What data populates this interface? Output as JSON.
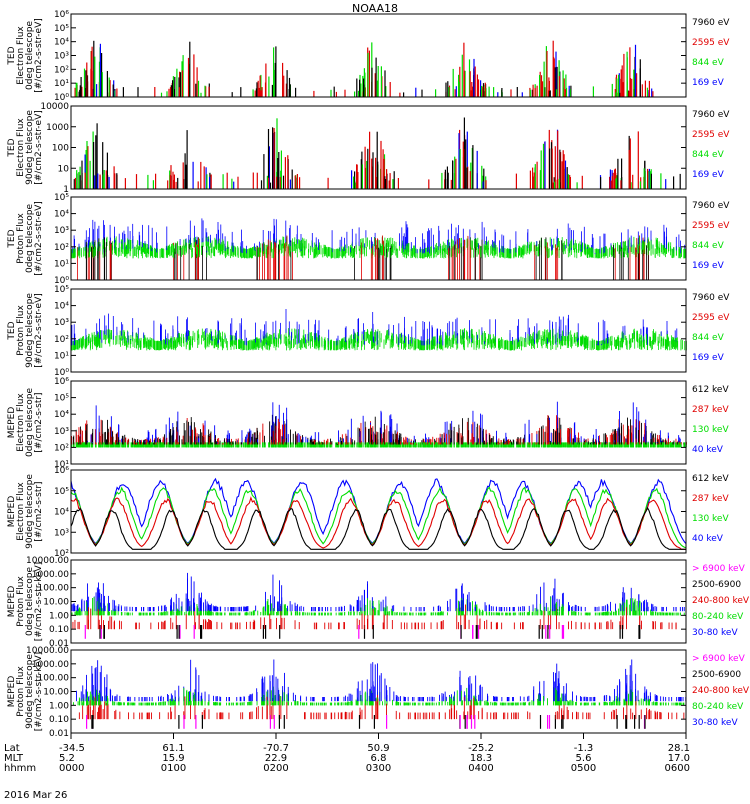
{
  "title": "NOAA18",
  "date_label": "2016 Mar 26",
  "x_axis": {
    "row_labels": [
      "Lat",
      "MLT",
      "hhmm"
    ],
    "ticks": [
      {
        "lat": "-34.5",
        "mlt": "5.2",
        "hhmm": "0000"
      },
      {
        "lat": "61.1",
        "mlt": "15.9",
        "hhmm": "0100"
      },
      {
        "lat": "-70.7",
        "mlt": "22.9",
        "hhmm": "0200"
      },
      {
        "lat": "50.9",
        "mlt": "6.8",
        "hhmm": "0300"
      },
      {
        "lat": "-25.2",
        "mlt": "18.3",
        "hhmm": "0400"
      },
      {
        "lat": "-1.3",
        "mlt": "5.6",
        "hhmm": "0500"
      },
      {
        "lat": "28.1",
        "mlt": "17.0",
        "hhmm": "0600"
      }
    ]
  },
  "colors": {
    "black": "#000000",
    "red": "#e00000",
    "green": "#00dd00",
    "blue": "#0000ff",
    "magenta": "#ff00ff"
  },
  "chart_data": [
    {
      "type": "scatter",
      "ylabel": [
        "TED",
        "Electron Flux",
        "0deg telescope",
        "[#/cm2-s-str-eV]"
      ],
      "scale": "log",
      "ylim": [
        1,
        1000000
      ],
      "yticks": [
        {
          "v": 1,
          "t": "10⁰"
        },
        {
          "v": 10,
          "t": "10¹"
        },
        {
          "v": 100,
          "t": "10²"
        },
        {
          "v": 1000,
          "t": "10³"
        },
        {
          "v": 10000,
          "t": "10⁴"
        },
        {
          "v": 100000,
          "t": "10⁵"
        },
        {
          "v": 1000000,
          "t": "10⁶"
        }
      ],
      "legend": [
        {
          "label": "7960 eV",
          "color": "black"
        },
        {
          "label": "2595 eV",
          "color": "red"
        },
        {
          "label": "844 eV",
          "color": "green"
        },
        {
          "label": "169 eV",
          "color": "blue"
        }
      ],
      "style": "ted_e0"
    },
    {
      "type": "scatter",
      "ylabel": [
        "TED",
        "Electron Flux",
        "90deg telescope",
        "[#/cm2-s-str-eV]"
      ],
      "scale": "log",
      "ylim": [
        1,
        10000
      ],
      "yticks": [
        {
          "v": 1,
          "t": "1"
        },
        {
          "v": 10,
          "t": "10"
        },
        {
          "v": 100,
          "t": "100"
        },
        {
          "v": 1000,
          "t": "1000"
        },
        {
          "v": 10000,
          "t": "10000"
        }
      ],
      "legend": [
        {
          "label": "7960 eV",
          "color": "black"
        },
        {
          "label": "2595 eV",
          "color": "red"
        },
        {
          "label": "844 eV",
          "color": "green"
        },
        {
          "label": "169 eV",
          "color": "blue"
        }
      ],
      "style": "ted_e90"
    },
    {
      "type": "scatter",
      "ylabel": [
        "TED",
        "Proton Flux",
        "0deg telescope",
        "[#/cm2-s-str-eV]"
      ],
      "scale": "log",
      "ylim": [
        1,
        100000
      ],
      "yticks": [
        {
          "v": 1,
          "t": "10⁰"
        },
        {
          "v": 10,
          "t": "10¹"
        },
        {
          "v": 100,
          "t": "10²"
        },
        {
          "v": 1000,
          "t": "10³"
        },
        {
          "v": 10000,
          "t": "10⁴"
        },
        {
          "v": 100000,
          "t": "10⁵"
        }
      ],
      "legend": [
        {
          "label": "7960 eV",
          "color": "black"
        },
        {
          "label": "2595 eV",
          "color": "red"
        },
        {
          "label": "844 eV",
          "color": "green"
        },
        {
          "label": "169 eV",
          "color": "blue"
        }
      ],
      "style": "ted_p0"
    },
    {
      "type": "scatter",
      "ylabel": [
        "TED",
        "Proton Flux",
        "90deg telescope",
        "[#/cm2-s-str-eV]"
      ],
      "scale": "log",
      "ylim": [
        1,
        100000
      ],
      "yticks": [
        {
          "v": 1,
          "t": "10⁰"
        },
        {
          "v": 10,
          "t": "10¹"
        },
        {
          "v": 100,
          "t": "10²"
        },
        {
          "v": 1000,
          "t": "10³"
        },
        {
          "v": 10000,
          "t": "10⁴"
        },
        {
          "v": 100000,
          "t": "10⁵"
        }
      ],
      "legend": [
        {
          "label": "7960 eV",
          "color": "black"
        },
        {
          "label": "2595 eV",
          "color": "red"
        },
        {
          "label": "844 eV",
          "color": "green"
        },
        {
          "label": "169 eV",
          "color": "blue"
        }
      ],
      "style": "ted_p90"
    },
    {
      "type": "scatter",
      "ylabel": [
        "MEPED",
        "Electron Flux",
        "0deg telescope",
        "[#/cm2-s-str]"
      ],
      "scale": "log",
      "ylim": [
        10,
        1000000
      ],
      "yticks": [
        {
          "v": 10,
          "t": "10¹"
        },
        {
          "v": 100,
          "t": "10²"
        },
        {
          "v": 1000,
          "t": "10³"
        },
        {
          "v": 10000,
          "t": "10⁴"
        },
        {
          "v": 100000,
          "t": "10⁵"
        },
        {
          "v": 1000000,
          "t": "10⁶"
        }
      ],
      "legend": [
        {
          "label": "612 keV",
          "color": "black"
        },
        {
          "label": "287 keV",
          "color": "red"
        },
        {
          "label": "130 keV",
          "color": "green"
        },
        {
          "label": "40 keV",
          "color": "blue"
        }
      ],
      "style": "mep_e0"
    },
    {
      "type": "scatter",
      "ylabel": [
        "MEPED",
        "Electron Flux",
        "90deg telescope",
        "[#/cm2-s-str]"
      ],
      "scale": "log",
      "ylim": [
        100,
        1000000
      ],
      "yticks": [
        {
          "v": 100,
          "t": "10²"
        },
        {
          "v": 1000,
          "t": "10³"
        },
        {
          "v": 10000,
          "t": "10⁴"
        },
        {
          "v": 100000,
          "t": "10⁵"
        },
        {
          "v": 1000000,
          "t": "10⁶"
        }
      ],
      "legend": [
        {
          "label": "612 keV",
          "color": "black"
        },
        {
          "label": "287 keV",
          "color": "red"
        },
        {
          "label": "130 keV",
          "color": "green"
        },
        {
          "label": "40 keV",
          "color": "blue"
        }
      ],
      "style": "mep_e90"
    },
    {
      "type": "scatter",
      "ylabel": [
        "MEPED",
        "Proton Flux",
        "0deg telescope",
        "[#/cm2-s-str-keV]"
      ],
      "scale": "log",
      "ylim": [
        0.01,
        10000
      ],
      "yticks": [
        {
          "v": 0.01,
          "t": "0.01"
        },
        {
          "v": 0.1,
          "t": "0.10"
        },
        {
          "v": 1,
          "t": "1.00"
        },
        {
          "v": 10,
          "t": "10.00"
        },
        {
          "v": 100,
          "t": "100.00"
        },
        {
          "v": 1000,
          "t": "1000.00"
        },
        {
          "v": 10000,
          "t": "10000.00"
        }
      ],
      "legend": [
        {
          "label": "> 6900 keV",
          "color": "magenta"
        },
        {
          "label": "2500-6900",
          "color": "black"
        },
        {
          "label": "240-800 keV",
          "color": "red"
        },
        {
          "label": "80-240 keV",
          "color": "green"
        },
        {
          "label": "30-80 keV",
          "color": "blue"
        }
      ],
      "style": "mep_p0"
    },
    {
      "type": "scatter",
      "ylabel": [
        "MEPED",
        "Proton Flux",
        "90deg telescope",
        "[#/cm2-s-str-keV]"
      ],
      "scale": "log",
      "ylim": [
        0.01,
        10000
      ],
      "yticks": [
        {
          "v": 0.01,
          "t": "0.01"
        },
        {
          "v": 0.1,
          "t": "0.10"
        },
        {
          "v": 1,
          "t": "1.00"
        },
        {
          "v": 10,
          "t": "10.00"
        },
        {
          "v": 100,
          "t": "100.00"
        },
        {
          "v": 1000,
          "t": "1000.00"
        },
        {
          "v": 10000,
          "t": "10000.00"
        }
      ],
      "legend": [
        {
          "label": "> 6900 keV",
          "color": "magenta"
        },
        {
          "label": "2500-6900",
          "color": "black"
        },
        {
          "label": "240-800 keV",
          "color": "red"
        },
        {
          "label": "80-240 keV",
          "color": "green"
        },
        {
          "label": "30-80 keV",
          "color": "blue"
        }
      ],
      "style": "mep_p90"
    }
  ]
}
